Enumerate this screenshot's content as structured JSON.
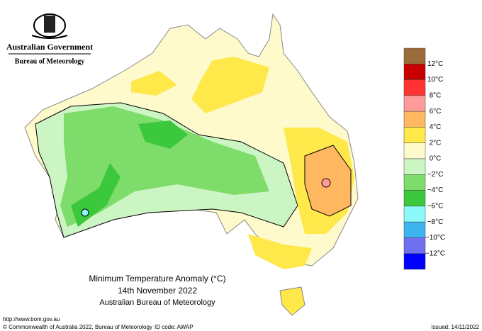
{
  "header": {
    "government": "Australian Government",
    "agency": "Bureau of Meteorology"
  },
  "map": {
    "title": "Minimum Temperature Anomaly (°C)",
    "date": "14th November 2022",
    "source": "Australian Bureau of Meteorology"
  },
  "legend": {
    "labels": [
      "12°C",
      "10°C",
      "8°C",
      "6°C",
      "4°C",
      "2°C",
      "0°C",
      "−2°C",
      "−4°C",
      "−6°C",
      "−8°C",
      "−10°C",
      "−12°C"
    ],
    "colors": [
      "#9c6b3a",
      "#c80000",
      "#ff3333",
      "#ff9a9a",
      "#ffb860",
      "#ffe84a",
      "#fffacc",
      "#ccf5c4",
      "#7ddc6a",
      "#3cc83c",
      "#8cfafa",
      "#3cb4f0",
      "#7070f0",
      "#0000ff"
    ]
  },
  "footer": {
    "url": "http://www.bom.gov.au",
    "copyright": "© Commonwealth of Australia 2022, Bureau of Meteorology",
    "id_code": "ID code: AWAP",
    "issued": "Issued: 14/11/2022"
  }
}
